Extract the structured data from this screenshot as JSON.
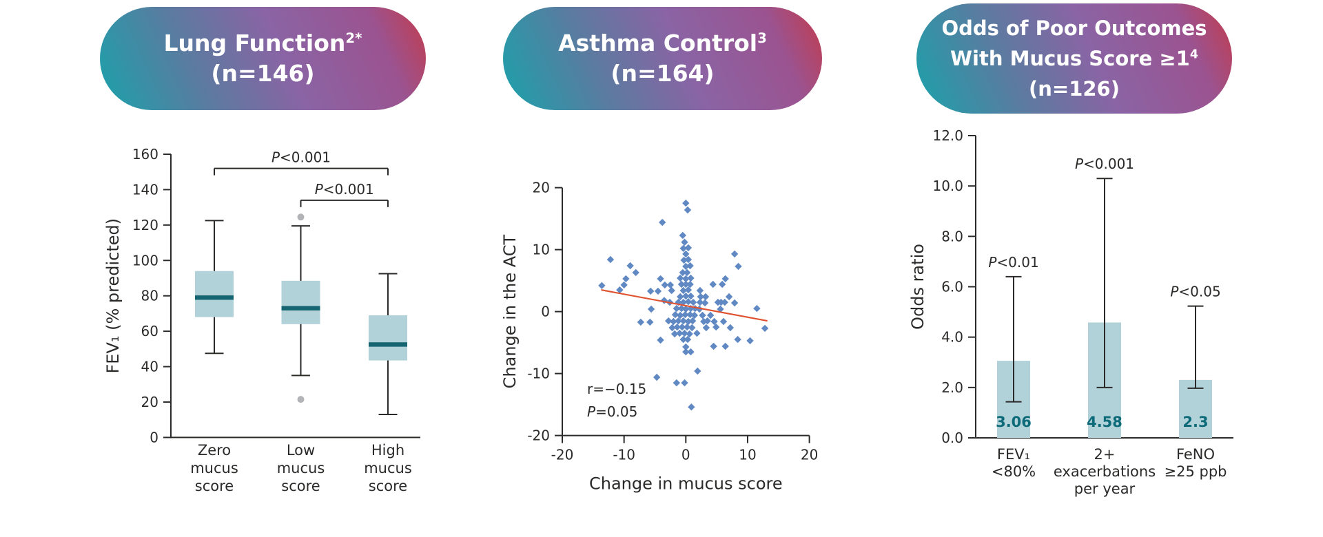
{
  "page": {
    "background": "#ffffff"
  },
  "colors": {
    "pill_gradient_start": "#1aa2ab",
    "pill_gradient_mid": "#8a64a4",
    "pill_gradient_end": "#c43b4b",
    "pill_text": "#ffffff",
    "axis": "#2b2a29",
    "text": "#2b2a29",
    "box_fill": "#b2d2da",
    "box_median": "#156472",
    "outlier": "#b1b3b6",
    "scatter_point": "#6089c4",
    "trend_line": "#e0512f",
    "bar_fill": "#b2d2da",
    "bar_value_text": "#0d6a78"
  },
  "panels": [
    {
      "header": {
        "line1": "Lung Function",
        "line1_sup": "2*",
        "line2": "(n=146)"
      }
    },
    {
      "header": {
        "line1": "Asthma Control",
        "line1_sup": "3",
        "line2": "(n=164)"
      }
    },
    {
      "header": {
        "line1": "Odds of Poor Outcomes",
        "line2": "With Mucus Score ≥1",
        "line2_sup": "4",
        "line3": "(n=126)"
      }
    }
  ],
  "chart_data": [
    {
      "type": "boxplot",
      "ylabel": "FEV₁ (% predicted)",
      "ylim": [
        0,
        160
      ],
      "yticks": [
        0,
        20,
        40,
        60,
        80,
        100,
        120,
        140,
        160
      ],
      "categories": [
        [
          "Zero",
          "mucus",
          "score"
        ],
        [
          "Low",
          "mucus",
          "score"
        ],
        [
          "High",
          "mucus",
          "score"
        ]
      ],
      "boxes": [
        {
          "whisker_low": 47.5,
          "q1": 68,
          "median": 79,
          "q3": 94,
          "whisker_high": 122.5,
          "outliers": []
        },
        {
          "whisker_low": 35,
          "q1": 64,
          "median": 73,
          "q3": 88.5,
          "whisker_high": 119.5,
          "outliers": [
            124.5,
            21.5
          ]
        },
        {
          "whisker_low": 13,
          "q1": 43.5,
          "median": 52.5,
          "q3": 69,
          "whisker_high": 92.5,
          "outliers": []
        }
      ],
      "significance_brackets": [
        {
          "from": 0,
          "to": 2,
          "y": 152,
          "label": "P<0.001"
        },
        {
          "from": 1,
          "to": 2,
          "y": 134,
          "label": "P<0.001"
        }
      ]
    },
    {
      "type": "scatter",
      "xlabel": "Change in mucus score",
      "ylabel": "Change in the ACT",
      "xlim": [
        -20,
        20
      ],
      "ylim": [
        -20,
        20
      ],
      "xticks": [
        -20,
        -10,
        0,
        10,
        20
      ],
      "yticks": [
        -20,
        -10,
        0,
        10,
        20
      ],
      "annotation": [
        "r=−0.15",
        "P=0.05"
      ],
      "trend_line": {
        "x1": -13.7,
        "y1": 3.5,
        "x2": 13.2,
        "y2": -1.5
      },
      "points": [
        [
          0,
          17.5
        ],
        [
          0.3,
          16.4
        ],
        [
          -3.8,
          14.4
        ],
        [
          -0.5,
          12.3
        ],
        [
          -0.2,
          11.2
        ],
        [
          -0.4,
          10.2
        ],
        [
          0.4,
          10.3
        ],
        [
          0,
          9.3
        ],
        [
          -0.3,
          8.3
        ],
        [
          0.4,
          8.4
        ],
        [
          0,
          7.3
        ],
        [
          0.7,
          7.4
        ],
        [
          -0.5,
          6.3
        ],
        [
          0.2,
          6.3
        ],
        [
          -0.9,
          5.4
        ],
        [
          0,
          5.3
        ],
        [
          0.8,
          5.4
        ],
        [
          -0.7,
          4.4
        ],
        [
          0,
          4.4
        ],
        [
          0.7,
          4.4
        ],
        [
          -0.4,
          3.4
        ],
        [
          0.4,
          3.5
        ],
        [
          -0.9,
          2.4
        ],
        [
          0,
          2.5
        ],
        [
          0.8,
          2.5
        ],
        [
          -1.2,
          1.5
        ],
        [
          -0.4,
          1.5
        ],
        [
          0.4,
          1.6
        ],
        [
          1.2,
          1.5
        ],
        [
          -1.5,
          0.5
        ],
        [
          -0.7,
          0.5
        ],
        [
          0,
          0.4
        ],
        [
          0.8,
          0.5
        ],
        [
          1.5,
          0.5
        ],
        [
          2.2,
          0.4
        ],
        [
          -1.7,
          -0.5
        ],
        [
          -0.9,
          -0.6
        ],
        [
          -0.1,
          -0.5
        ],
        [
          0.7,
          -0.5
        ],
        [
          1.4,
          -0.6
        ],
        [
          2.7,
          -0.6
        ],
        [
          4.0,
          -0.6
        ],
        [
          -2.8,
          -1.5
        ],
        [
          -2.0,
          -1.6
        ],
        [
          -1.2,
          -1.5
        ],
        [
          -0.4,
          -1.5
        ],
        [
          0.4,
          -1.6
        ],
        [
          1.1,
          -1.5
        ],
        [
          2.9,
          -1.6
        ],
        [
          3.5,
          -1.5
        ],
        [
          4.6,
          -1.6
        ],
        [
          6.1,
          -1.6
        ],
        [
          -7.3,
          -1.7
        ],
        [
          -5.8,
          -1.7
        ],
        [
          -2.2,
          -2.6
        ],
        [
          -1.4,
          -2.5
        ],
        [
          -0.6,
          -2.5
        ],
        [
          0.2,
          -2.5
        ],
        [
          1.0,
          -2.6
        ],
        [
          3.3,
          -2.6
        ],
        [
          4.9,
          -2.5
        ],
        [
          7.2,
          -2.6
        ],
        [
          12.8,
          -2.7
        ],
        [
          -1.8,
          -3.6
        ],
        [
          -1.0,
          -3.5
        ],
        [
          -0.2,
          -3.5
        ],
        [
          0.6,
          -3.6
        ],
        [
          1.8,
          -3.5
        ],
        [
          -4.1,
          -4.6
        ],
        [
          -0.4,
          -4.5
        ],
        [
          0.3,
          -4.5
        ],
        [
          8.4,
          -4.5
        ],
        [
          10.4,
          -4.7
        ],
        [
          0,
          -5.7
        ],
        [
          4.5,
          -5.6
        ],
        [
          6.4,
          -5.6
        ],
        [
          0,
          -6.5
        ],
        [
          0.8,
          -6.5
        ],
        [
          1.9,
          -9.6
        ],
        [
          -4.7,
          -10.6
        ],
        [
          -1.5,
          -11.5
        ],
        [
          -0.2,
          -11.5
        ],
        [
          0.9,
          -15.4
        ],
        [
          -13.6,
          4.2
        ],
        [
          -12.2,
          8.4
        ],
        [
          -10.7,
          3.5
        ],
        [
          -10.0,
          4.3
        ],
        [
          -9.7,
          5.3
        ],
        [
          -9.0,
          7.4
        ],
        [
          -8.1,
          6.3
        ],
        [
          -5.7,
          3.3
        ],
        [
          -5.6,
          0.4
        ],
        [
          -4.5,
          3.3
        ],
        [
          -4.1,
          5.3
        ],
        [
          -3.5,
          1.8
        ],
        [
          -3.4,
          4.3
        ],
        [
          -2.5,
          4.3
        ],
        [
          -2.3,
          3.4
        ],
        [
          -2.6,
          1.5
        ],
        [
          7.9,
          9.3
        ],
        [
          8.5,
          7.3
        ],
        [
          6.4,
          5.3
        ],
        [
          4.4,
          4.4
        ],
        [
          5.9,
          4.4
        ],
        [
          7.0,
          2.4
        ],
        [
          5.2,
          1.5
        ],
        [
          5.7,
          1.5
        ],
        [
          6.3,
          1.5
        ],
        [
          7.9,
          1.4
        ],
        [
          11.5,
          0.5
        ],
        [
          5.6,
          0.4
        ],
        [
          2.4,
          2.4
        ],
        [
          3.2,
          2.4
        ],
        [
          2.3,
          3.4
        ],
        [
          2.3,
          1.5
        ],
        [
          3.1,
          1.4
        ]
      ]
    },
    {
      "type": "bar",
      "ylabel": "Odds ratio",
      "ylim": [
        0,
        12
      ],
      "yticks": [
        0,
        2,
        4,
        6,
        8,
        10,
        12
      ],
      "ytick_labels": [
        "0.0",
        "2.0",
        "4.0",
        "6.0",
        "8.0",
        "10.0",
        "12.0"
      ],
      "categories": [
        [
          "FEV₁",
          "<80%"
        ],
        [
          "2+",
          "exacerbations",
          "per year"
        ],
        [
          "FeNO",
          "≥25 ppb"
        ]
      ],
      "values": [
        3.06,
        4.58,
        2.3
      ],
      "value_labels": [
        "3.06",
        "4.58",
        "2.3"
      ],
      "ci_low": [
        1.43,
        2.0,
        1.97
      ],
      "ci_high": [
        6.4,
        10.3,
        5.23
      ],
      "p_labels": [
        "P<0.01",
        "P<0.001",
        "P<0.05"
      ]
    }
  ]
}
